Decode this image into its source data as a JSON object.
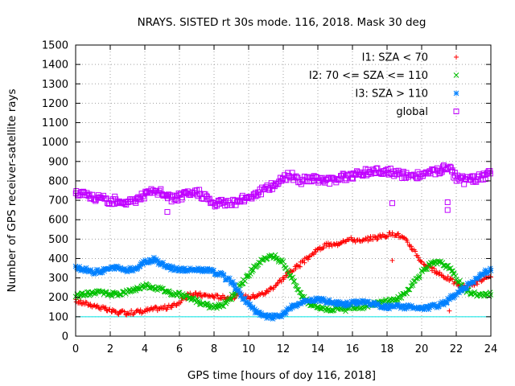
{
  "chart_data": {
    "type": "scatter",
    "title": "NRAYS. SISTED rt 30s mode. 116, 2018. Mask 30 deg",
    "xlabel": "GPS time [hours of doy 116, 2018]",
    "ylabel": "Number of GPS receiver-satellite rays",
    "xlim": [
      0,
      24
    ],
    "ylim": [
      0,
      1500
    ],
    "xticks": [
      0,
      2,
      4,
      6,
      8,
      10,
      12,
      14,
      16,
      18,
      20,
      22,
      24
    ],
    "yticks": [
      0,
      100,
      200,
      300,
      400,
      500,
      600,
      700,
      800,
      900,
      1000,
      1100,
      1200,
      1300,
      1400,
      1500
    ],
    "grid": true,
    "legend_position": "top-right",
    "reference_line": {
      "y": 100,
      "color": "#00e5e5"
    },
    "series": [
      {
        "name": "I1: SZA < 70",
        "marker": "+",
        "color": "#ff0000",
        "x": [
          0,
          0.5,
          1,
          1.5,
          2,
          2.5,
          3,
          3.5,
          4,
          4.5,
          5,
          5.5,
          6,
          6.5,
          7,
          7.5,
          8,
          8.5,
          9,
          9.5,
          10,
          10.5,
          11,
          11.5,
          12,
          12.5,
          13,
          13.5,
          14,
          14.5,
          15,
          15.5,
          16,
          16.5,
          17,
          17.5,
          18,
          18.5,
          19,
          19.5,
          20,
          20.5,
          21,
          21.5,
          22,
          22.5,
          23,
          23.5,
          24
        ],
        "y": [
          180,
          170,
          160,
          145,
          130,
          120,
          120,
          125,
          130,
          140,
          145,
          150,
          175,
          210,
          215,
          210,
          205,
          200,
          200,
          210,
          200,
          210,
          225,
          260,
          300,
          340,
          370,
          410,
          445,
          470,
          470,
          495,
          500,
          485,
          505,
          510,
          520,
          530,
          500,
          450,
          380,
          350,
          320,
          300,
          270,
          250,
          270,
          290,
          300
        ]
      },
      {
        "name": "I2: 70 <= SZA <= 110",
        "marker": "x",
        "color": "#00c000",
        "x": [
          0,
          0.5,
          1,
          1.5,
          2,
          2.5,
          3,
          3.5,
          4,
          4.5,
          5,
          5.5,
          6,
          6.5,
          7,
          7.5,
          8,
          8.5,
          9,
          9.5,
          10,
          10.5,
          11,
          11.5,
          12,
          12.5,
          13,
          13.5,
          14,
          14.5,
          15,
          15.5,
          16,
          16.5,
          17,
          17.5,
          18,
          18.5,
          19,
          19.5,
          20,
          20.5,
          21,
          21.5,
          22,
          22.5,
          23,
          23.5,
          24
        ],
        "y": [
          205,
          215,
          220,
          225,
          215,
          220,
          230,
          245,
          260,
          255,
          240,
          225,
          215,
          200,
          180,
          160,
          150,
          160,
          200,
          260,
          320,
          370,
          400,
          410,
          380,
          300,
          220,
          170,
          150,
          140,
          140,
          135,
          150,
          150,
          165,
          170,
          180,
          190,
          215,
          270,
          330,
          370,
          380,
          360,
          300,
          240,
          220,
          210,
          215
        ]
      },
      {
        "name": "I3: SZA > 110",
        "marker": "*",
        "color": "#0080ff",
        "x": [
          0,
          0.5,
          1,
          1.5,
          2,
          2.5,
          3,
          3.5,
          4,
          4.5,
          5,
          5.5,
          6,
          6.5,
          7,
          7.5,
          8,
          8.5,
          9,
          9.5,
          10,
          10.5,
          11,
          11.5,
          12,
          12.5,
          13,
          13.5,
          14,
          14.5,
          15,
          15.5,
          16,
          16.5,
          17,
          17.5,
          18,
          18.5,
          19,
          19.5,
          20,
          20.5,
          21,
          21.5,
          22,
          22.5,
          23,
          23.5,
          24
        ],
        "y": [
          350,
          345,
          330,
          335,
          350,
          350,
          340,
          350,
          380,
          395,
          370,
          350,
          345,
          340,
          345,
          340,
          330,
          310,
          280,
          220,
          160,
          120,
          100,
          100,
          110,
          150,
          170,
          180,
          190,
          180,
          170,
          165,
          170,
          180,
          170,
          160,
          150,
          155,
          150,
          150,
          140,
          150,
          160,
          180,
          220,
          250,
          280,
          320,
          345
        ]
      },
      {
        "name": "global",
        "marker": "square",
        "color": "#c000ff",
        "x": [
          0,
          0.5,
          1,
          1.5,
          2,
          2.5,
          3,
          3.5,
          4,
          4.5,
          5,
          5.5,
          6,
          6.5,
          7,
          7.5,
          8,
          8.5,
          9,
          9.5,
          10,
          10.5,
          11,
          11.5,
          12,
          12.5,
          13,
          13.5,
          14,
          14.5,
          15,
          15.5,
          16,
          16.5,
          17,
          17.5,
          18,
          18.5,
          19,
          19.5,
          20,
          20.5,
          21,
          21.5,
          22,
          22.5,
          23,
          23.5,
          24
        ],
        "y": [
          735,
          730,
          715,
          705,
          700,
          700,
          690,
          705,
          730,
          745,
          740,
          710,
          720,
          730,
          740,
          720,
          680,
          690,
          690,
          700,
          720,
          740,
          760,
          780,
          820,
          825,
          800,
          810,
          810,
          800,
          810,
          820,
          830,
          840,
          850,
          855,
          850,
          840,
          830,
          820,
          830,
          840,
          850,
          870,
          820,
          800,
          810,
          820,
          840
        ]
      }
    ],
    "outliers": [
      {
        "series": "I1: SZA < 70",
        "x": 18.3,
        "y": 390
      },
      {
        "series": "I1: SZA < 70",
        "x": 21.6,
        "y": 130
      },
      {
        "series": "global",
        "x": 18.3,
        "y": 685
      },
      {
        "series": "global",
        "x": 21.5,
        "y": 690
      },
      {
        "series": "global",
        "x": 21.5,
        "y": 650
      },
      {
        "series": "global",
        "x": 5.3,
        "y": 640
      }
    ]
  }
}
